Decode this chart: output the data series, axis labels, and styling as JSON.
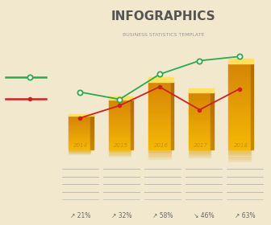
{
  "title": "INFOGRAPHICS",
  "subtitle": "BUSINESS STATISTICS TEMPLATE",
  "background_top": "#f8f0dc",
  "background_bottom": "#e8d8b0",
  "background_color": "#f2e8ce",
  "categories": [
    "2014",
    "2015",
    "2016",
    "2017",
    "2018"
  ],
  "bar_heights": [
    3.2,
    4.8,
    6.5,
    5.5,
    8.2
  ],
  "green_line_y": [
    5.5,
    4.8,
    7.2,
    8.5,
    8.9
  ],
  "red_line_y": [
    3.0,
    4.2,
    6.0,
    3.8,
    5.8
  ],
  "green_color": "#2da84f",
  "red_color": "#cc2222",
  "bar_face_color": "#f5b800",
  "bar_side_color": "#c88a00",
  "bar_top_color": "#ffe060",
  "bar_reflect_color": "#e0a000",
  "percentages": [
    "21%",
    "32%",
    "58%",
    "46%",
    "63%"
  ],
  "percent_arrows": [
    1,
    1,
    1,
    -1,
    1
  ],
  "title_color": "#555555",
  "subtitle_color": "#999999",
  "year_label_color": "#c8900a",
  "pct_color": "#666666",
  "line_color": "#aaaaaa"
}
